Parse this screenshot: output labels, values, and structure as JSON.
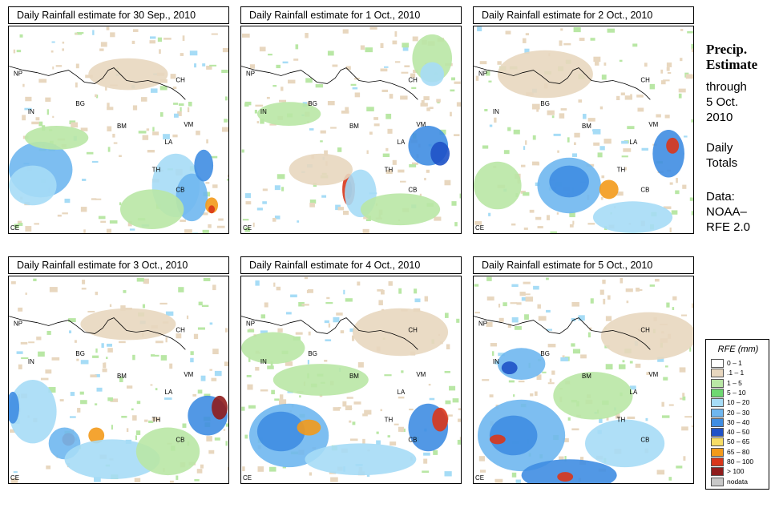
{
  "panels": [
    {
      "title": "Daily Rainfall estimate for  30 Sep., 2010"
    },
    {
      "title": "Daily Rainfall estimate for  1 Oct., 2010"
    },
    {
      "title": "Daily Rainfall estimate for  2 Oct., 2010"
    },
    {
      "title": "Daily Rainfall estimate for  3 Oct., 2010"
    },
    {
      "title": "Daily Rainfall estimate for  4 Oct., 2010"
    },
    {
      "title": "Daily Rainfall estimate for  5 Oct., 2010"
    }
  ],
  "map_labels": {
    "np": "NP",
    "in": "IN",
    "bg": "BG",
    "bm": "BM",
    "ch": "CH",
    "vm": "VM",
    "la": "LA",
    "th": "TH",
    "cb": "CB",
    "ce": "CE"
  },
  "side": {
    "heading_line1": "Precip.",
    "heading_line2": "Estimate",
    "through": "through",
    "date_line1": "5 Oct.",
    "date_line2": "2010",
    "daily_line1": "Daily",
    "daily_line2": "Totals",
    "data_line1": "Data:",
    "data_line2": "NOAA–",
    "data_line3": "RFE 2.0"
  },
  "legend": {
    "title": "RFE (mm)",
    "items": [
      {
        "label": "0 – 1",
        "color": "#ffffff"
      },
      {
        "label": ".1 – 1",
        "color": "#e8d7bf"
      },
      {
        "label": "1 – 5",
        "color": "#b9e7a5"
      },
      {
        "label": "5 – 10",
        "color": "#6fd872"
      },
      {
        "label": "10 – 20",
        "color": "#a6dcf6"
      },
      {
        "label": "20 – 30",
        "color": "#6fb7f0"
      },
      {
        "label": "30 – 40",
        "color": "#3f8de2"
      },
      {
        "label": "40 – 50",
        "color": "#1f52c7"
      },
      {
        "label": "50 – 65",
        "color": "#f7dd65"
      },
      {
        "label": "65 – 80",
        "color": "#f39a1b"
      },
      {
        "label": "80 – 100",
        "color": "#d9361a"
      },
      {
        "label": "> 100",
        "color": "#8f1c1c"
      },
      {
        "label": "nodata",
        "color": "#c8c8c8"
      }
    ]
  },
  "rain_colors": {
    "trace": "#e8d7bf",
    "light": "#b9e7a5",
    "green": "#6fd872",
    "lightblue": "#a6dcf6",
    "blue": "#6fb7f0",
    "midblue": "#3f8de2",
    "darkblue": "#1f52c7",
    "yellow": "#f7dd65",
    "orange": "#f39a1b",
    "red": "#d9361a",
    "darkred": "#8f1c1c"
  }
}
